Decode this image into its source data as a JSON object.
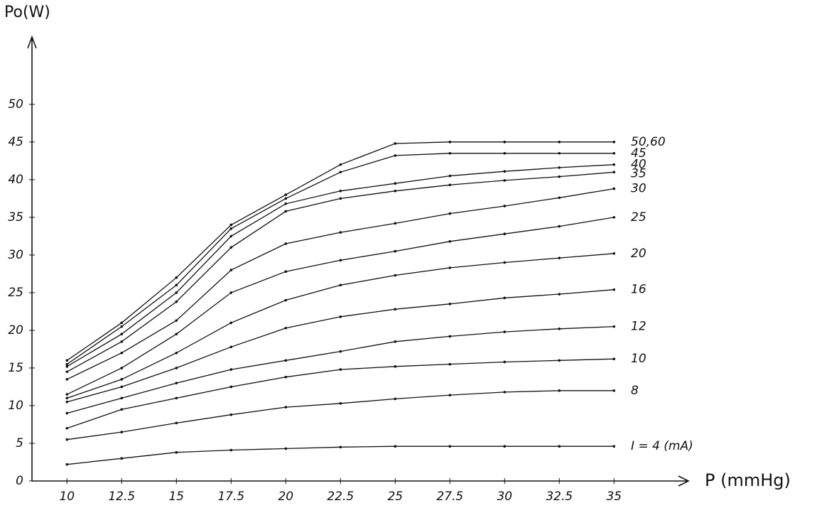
{
  "chart_data": {
    "type": "line",
    "y_label": "Po(W)",
    "x_label": "P (mmHg)",
    "x": [
      10,
      12.5,
      15,
      17.5,
      20,
      22.5,
      25,
      27.5,
      30,
      32.5,
      35
    ],
    "xlim": [
      8.4,
      38.4
    ],
    "ylim": [
      0,
      58
    ],
    "xticks": [
      10,
      12.5,
      15,
      17.5,
      20,
      22.5,
      25,
      27.5,
      30,
      32.5,
      35
    ],
    "yticks": [
      0,
      5,
      10,
      15,
      20,
      25,
      30,
      35,
      40,
      45,
      50
    ],
    "grid": false,
    "series": [
      {
        "name": "50,60",
        "color": "#111111",
        "values": [
          16.0,
          21.0,
          27.0,
          34.0,
          38.0,
          42.0,
          44.8,
          45.0,
          45.0,
          45.0,
          45.0
        ]
      },
      {
        "name": "45",
        "color": "#111111",
        "values": [
          15.5,
          20.5,
          26.0,
          33.5,
          37.5,
          41.0,
          43.2,
          43.5,
          43.5,
          43.5,
          43.5
        ]
      },
      {
        "name": "40",
        "color": "#111111",
        "values": [
          15.2,
          19.5,
          25.0,
          32.5,
          36.8,
          38.5,
          39.5,
          40.5,
          41.1,
          41.6,
          42.0
        ]
      },
      {
        "name": "35",
        "color": "#111111",
        "values": [
          14.5,
          18.5,
          23.8,
          31.0,
          35.8,
          37.5,
          38.5,
          39.3,
          39.9,
          40.4,
          41.0
        ]
      },
      {
        "name": "30",
        "color": "#111111",
        "values": [
          13.5,
          17.0,
          21.3,
          28.0,
          31.5,
          33.0,
          34.2,
          35.5,
          36.5,
          37.6,
          38.8
        ]
      },
      {
        "name": "25",
        "color": "#111111",
        "values": [
          11.5,
          15.0,
          19.5,
          25.0,
          27.8,
          29.3,
          30.5,
          31.8,
          32.8,
          33.8,
          35.0
        ]
      },
      {
        "name": "20",
        "color": "#111111",
        "values": [
          11.0,
          13.5,
          17.0,
          21.0,
          24.0,
          26.0,
          27.3,
          28.3,
          29.0,
          29.6,
          30.2
        ]
      },
      {
        "name": "16",
        "color": "#111111",
        "values": [
          10.5,
          12.5,
          15.0,
          17.8,
          20.3,
          21.8,
          22.8,
          23.5,
          24.3,
          24.8,
          25.4
        ]
      },
      {
        "name": "12",
        "color": "#111111",
        "values": [
          9.0,
          11.0,
          13.0,
          14.8,
          16.0,
          17.2,
          18.5,
          19.2,
          19.8,
          20.2,
          20.5
        ]
      },
      {
        "name": "10",
        "color": "#111111",
        "values": [
          7.0,
          9.5,
          11.0,
          12.5,
          13.8,
          14.8,
          15.2,
          15.5,
          15.8,
          16.0,
          16.2
        ]
      },
      {
        "name": "8",
        "color": "#111111",
        "values": [
          5.5,
          6.5,
          7.7,
          8.8,
          9.8,
          10.3,
          10.9,
          11.4,
          11.8,
          12.0,
          12.0
        ]
      },
      {
        "name": "I = 4 (mA)",
        "color": "#111111",
        "values": [
          2.2,
          3.0,
          3.8,
          4.1,
          4.3,
          4.5,
          4.6,
          4.6,
          4.6,
          4.6,
          4.6
        ]
      }
    ]
  }
}
